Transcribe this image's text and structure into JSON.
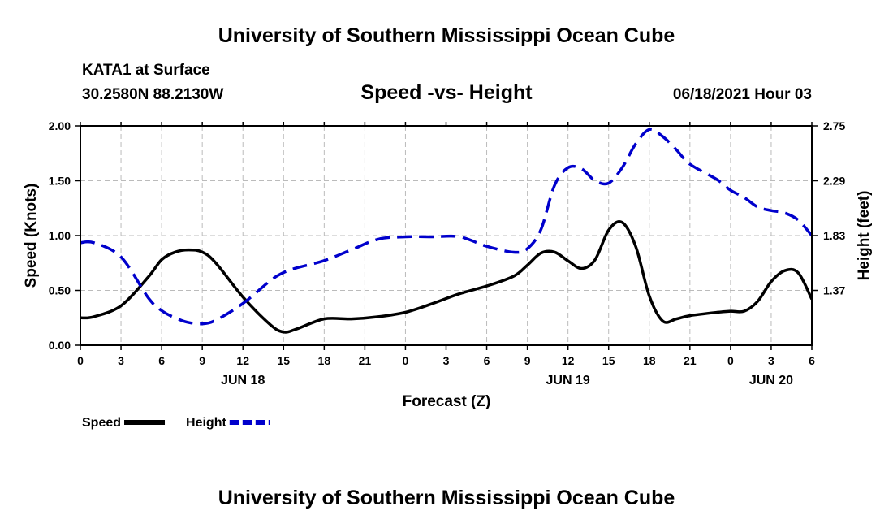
{
  "header": {
    "org_title": "University of Southern Mississippi Ocean Cube",
    "station": "KATA1 at Surface",
    "coords": "30.2580N  88.2130W",
    "datetime": "06/18/2021 Hour 03"
  },
  "footer": {
    "org_title": "University of Southern Mississippi Ocean Cube"
  },
  "chart_data": {
    "type": "line",
    "title": "Speed -vs- Height",
    "xlabel": "Forecast (Z)",
    "ylabel_left": "Speed (Knots)",
    "ylabel_right": "Height (feet)",
    "x_range": [
      0,
      54
    ],
    "x_ticks": [
      0,
      3,
      6,
      9,
      12,
      15,
      18,
      21,
      24,
      27,
      30,
      33,
      36,
      39,
      42,
      45,
      48,
      51,
      54
    ],
    "x_tick_labels": [
      "0",
      "3",
      "6",
      "9",
      "12",
      "15",
      "18",
      "21",
      "0",
      "3",
      "6",
      "9",
      "12",
      "15",
      "18",
      "21",
      "0",
      "3",
      "6"
    ],
    "date_labels": [
      {
        "x": 12,
        "label": "JUN 18"
      },
      {
        "x": 36,
        "label": "JUN 19"
      },
      {
        "x": 51,
        "label": "JUN 20"
      }
    ],
    "ylim_left": [
      0,
      2
    ],
    "y_ticks_left": [
      "0.00",
      "0.50",
      "1.00",
      "1.50",
      "2.00"
    ],
    "y_tick_values_left": [
      0,
      0.5,
      1.0,
      1.5,
      2.0
    ],
    "ylim_right": [
      0.91,
      2.75
    ],
    "y_ticks_right": [
      "1.37",
      "1.83",
      "2.29",
      "2.75"
    ],
    "y_tick_values_right": [
      1.37,
      1.83,
      2.29,
      2.75
    ],
    "grid": true,
    "series": [
      {
        "name": "Speed",
        "axis": "left",
        "color": "#000000",
        "style": "solid",
        "x": [
          0,
          1,
          3,
          5,
          6,
          7,
          8,
          9,
          10,
          12,
          14,
          15,
          16,
          18,
          20,
          22,
          24,
          26,
          28,
          30,
          32,
          33,
          34,
          35,
          36,
          37,
          38,
          39,
          40,
          41,
          42,
          43,
          44,
          45,
          47,
          48,
          49,
          50,
          51,
          52,
          53,
          54
        ],
        "values": [
          0.25,
          0.26,
          0.36,
          0.62,
          0.78,
          0.85,
          0.87,
          0.85,
          0.75,
          0.44,
          0.19,
          0.12,
          0.15,
          0.24,
          0.24,
          0.26,
          0.3,
          0.38,
          0.47,
          0.54,
          0.63,
          0.73,
          0.84,
          0.85,
          0.77,
          0.7,
          0.78,
          1.05,
          1.12,
          0.9,
          0.45,
          0.22,
          0.24,
          0.27,
          0.3,
          0.31,
          0.31,
          0.4,
          0.58,
          0.68,
          0.66,
          0.42
        ]
      },
      {
        "name": "Height",
        "axis": "right",
        "color": "#0000cc",
        "style": "dashed",
        "x": [
          0,
          1,
          3,
          5,
          6,
          7,
          8,
          9,
          10,
          12,
          14,
          15,
          16,
          18,
          20,
          22,
          24,
          26,
          28,
          30,
          32,
          33,
          34,
          35,
          36,
          37,
          38,
          39,
          40,
          41,
          42,
          43,
          44,
          45,
          47,
          48,
          49,
          50,
          51,
          52,
          53,
          54
        ],
        "values": [
          1.77,
          1.77,
          1.65,
          1.31,
          1.2,
          1.14,
          1.1,
          1.09,
          1.12,
          1.26,
          1.45,
          1.52,
          1.56,
          1.62,
          1.71,
          1.8,
          1.82,
          1.82,
          1.82,
          1.74,
          1.69,
          1.72,
          1.88,
          2.25,
          2.4,
          2.39,
          2.29,
          2.27,
          2.4,
          2.6,
          2.72,
          2.66,
          2.55,
          2.43,
          2.3,
          2.21,
          2.15,
          2.07,
          2.04,
          2.02,
          1.96,
          1.83
        ]
      }
    ],
    "legend": {
      "position": "bottom-left",
      "entries": [
        {
          "label": "Speed",
          "color": "#000000",
          "style": "solid"
        },
        {
          "label": "Height",
          "color": "#0000cc",
          "style": "dashed"
        }
      ]
    }
  }
}
